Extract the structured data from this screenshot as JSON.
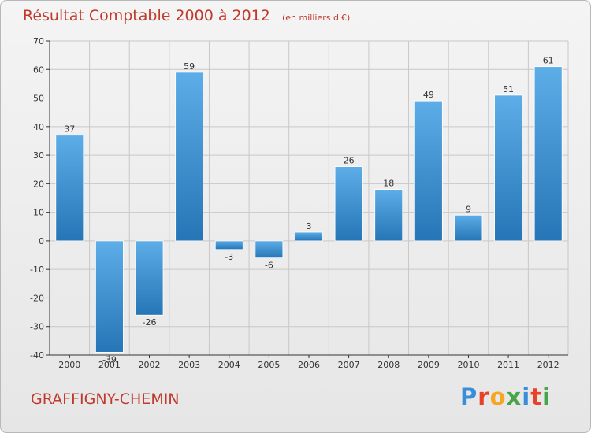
{
  "header": {
    "title": "Résultat Comptable 2000 à 2012",
    "subtitle": "(en milliers d'€)"
  },
  "footer": {
    "town": "GRAFFIGNY-CHEMIN",
    "logo_text": "Proxiti",
    "logo_colors": [
      "#3a8ed8",
      "#e8402b",
      "#f5a623",
      "#46a546",
      "#3a8ed8",
      "#e8402b",
      "#46a546"
    ]
  },
  "colors": {
    "bar_light": "#5dade8",
    "bar_dark": "#2675b6",
    "grid": "#c8c8c8",
    "axis": "#333333",
    "text": "#333333",
    "accent": "#c0392b"
  },
  "chart_data": {
    "type": "bar",
    "title": "Résultat Comptable 2000 à 2012",
    "subtitle": "(en milliers d'€)",
    "xlabel": "",
    "ylabel": "",
    "categories": [
      "2000",
      "2001",
      "2002",
      "2003",
      "2004",
      "2005",
      "2006",
      "2007",
      "2008",
      "2009",
      "2010",
      "2011",
      "2012"
    ],
    "values": [
      37,
      -39,
      -26,
      59,
      -3,
      -6,
      3,
      26,
      18,
      49,
      9,
      51,
      61
    ],
    "data_labels": [
      "37",
      "-39",
      "-26",
      "59",
      "-3",
      "-6",
      "3",
      "26",
      "18",
      "49",
      "9",
      "51",
      "61"
    ],
    "ylim": [
      -40,
      70
    ],
    "yticks": [
      -40,
      -30,
      -20,
      -10,
      0,
      10,
      20,
      30,
      40,
      50,
      60,
      70
    ],
    "grid": true,
    "legend": "none"
  }
}
